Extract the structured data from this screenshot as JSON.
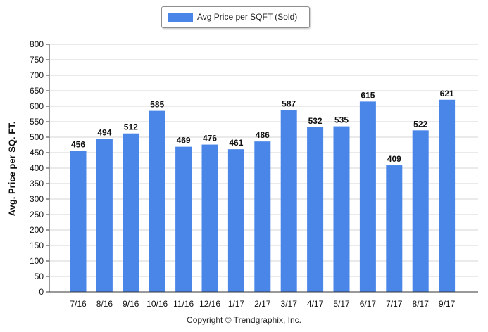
{
  "chart_data": {
    "type": "bar",
    "legend": [
      "Avg Price per SQFT (Sold)"
    ],
    "legend_position": "top-center",
    "ylabel": "Avg. Price per SQ. FT.",
    "xlabel": "",
    "ylim": [
      0,
      800
    ],
    "yticks": [
      "0",
      "50",
      "100",
      "150",
      "200",
      "250",
      "300",
      "350",
      "400",
      "450",
      "500",
      "550",
      "600",
      "650",
      "700",
      "750",
      "800"
    ],
    "grid": true,
    "categories": [
      "7/16",
      "8/16",
      "9/16",
      "10/16",
      "11/16",
      "12/16",
      "1/17",
      "2/17",
      "3/17",
      "4/17",
      "5/17",
      "6/17",
      "7/17",
      "8/17",
      "9/17"
    ],
    "series": [
      {
        "name": "Avg Price per SQFT (Sold)",
        "values": [
          456,
          494,
          512,
          585,
          469,
          476,
          461,
          486,
          587,
          532,
          535,
          615,
          409,
          522,
          621
        ]
      }
    ],
    "color": "#4a86e8"
  },
  "footer": {
    "copyright": "Copyright © Trendgraphix, Inc."
  }
}
